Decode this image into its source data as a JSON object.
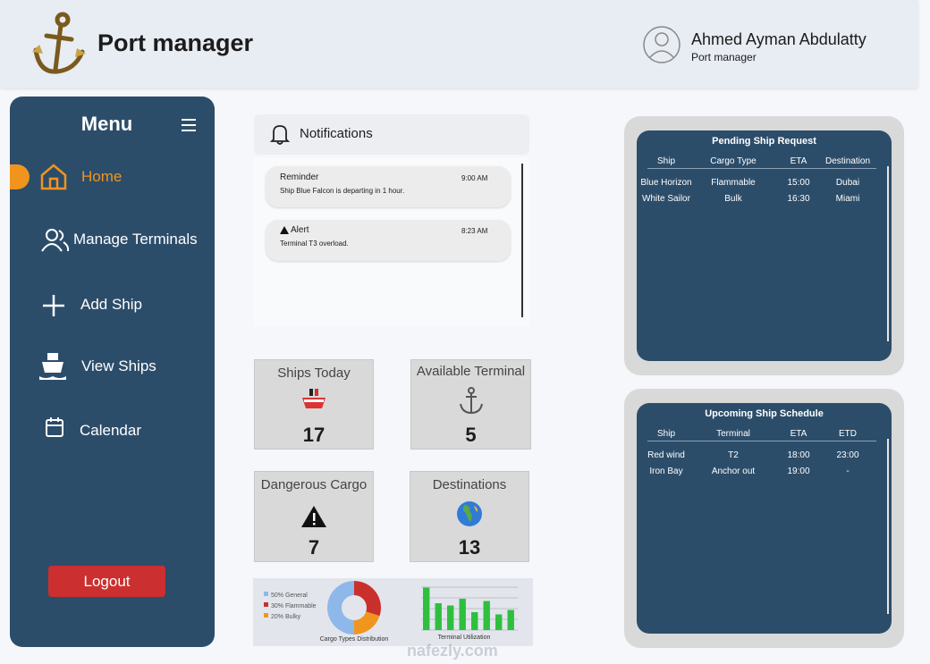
{
  "header": {
    "title": "Port manager",
    "user_name": "Ahmed Ayman Abdulatty",
    "user_role": "Port manager"
  },
  "sidebar": {
    "title": "Menu",
    "items": [
      "Home",
      "Manage Terminals",
      "Add Ship",
      "View Ships",
      "Calendar"
    ],
    "logout": "Logout"
  },
  "notifications": {
    "title": "Notifications",
    "items": [
      {
        "title": "Reminder",
        "time": "9:00 AM",
        "text": "Ship Blue Falcon is departing in 1 hour."
      },
      {
        "title": "Alert",
        "time": "8:23 AM",
        "text": "Terminal T3 overload."
      }
    ]
  },
  "stats": [
    {
      "label": "Ships Today",
      "value": 17
    },
    {
      "label": "Available Terminal",
      "value": 5
    },
    {
      "label": "Dangerous Cargo",
      "value": 7
    },
    {
      "label": "Destinations",
      "value": 13
    }
  ],
  "cargo_chart": {
    "type": "pie",
    "title": "Cargo Types Distribution",
    "values": [
      50,
      30,
      20
    ],
    "value_labels": [
      "50% General",
      "30% Flammable",
      "20% Bulky"
    ],
    "colors": [
      "#8fb8ea",
      "#c9302c",
      "#f0961e"
    ]
  },
  "utilization_chart": {
    "type": "bar",
    "title": "Terminal Utilization",
    "values": [
      95,
      60,
      55,
      70,
      40,
      65,
      35,
      45
    ],
    "color": "#2fbf3f"
  },
  "pending_requests": {
    "title": "Pending Ship Request",
    "columns": [
      "Ship",
      "Cargo Type",
      "ETA",
      "Destination"
    ],
    "rows": [
      [
        "Blue Horizon",
        "Flammable",
        "15:00",
        "Dubai"
      ],
      [
        "White Sailor",
        "Bulk",
        "16:30",
        "Miami"
      ]
    ]
  },
  "upcoming_schedule": {
    "title": "Upcoming Ship Schedule",
    "columns": [
      "Ship",
      "Terminal",
      "ETA",
      "ETD"
    ],
    "rows": [
      [
        "Red wind",
        "T2",
        "18:00",
        "23:00"
      ],
      [
        "Iron Bay",
        "Anchor out",
        "19:00",
        "-"
      ]
    ]
  },
  "watermark": "nafezly.com"
}
